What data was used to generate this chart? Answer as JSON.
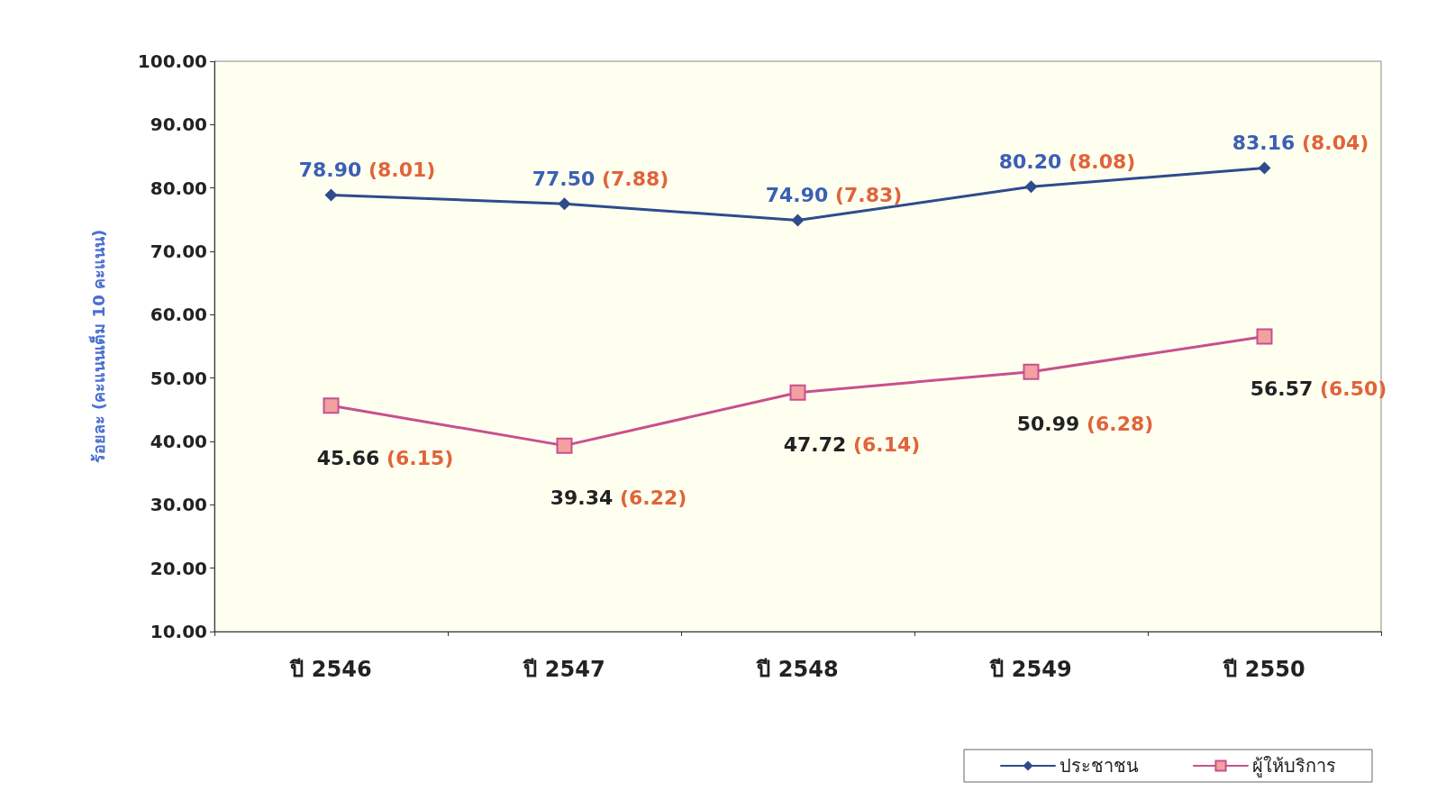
{
  "chart_data": {
    "type": "line",
    "ylabel": "ร้อยละ (คะแนนเต็ม 10 คะแนน)",
    "categories": [
      "ปี 2546",
      "ปี 2547",
      "ปี 2548",
      "ปี 2549",
      "ปี 2550"
    ],
    "series": [
      {
        "name": "ประชาชน",
        "color": "#2f4b8c",
        "marker": "diamond",
        "values": [
          78.9,
          77.5,
          74.9,
          80.2,
          83.16
        ],
        "value_labels": [
          "78.90 (8.01)",
          "77.50 (7.88)",
          "74.90 (7.83)",
          "80.20 (8.08)",
          "83.16 (8.04)"
        ]
      },
      {
        "name": "ผู้ให้บริการ",
        "color": "#c8508e",
        "marker": "square",
        "values": [
          45.66,
          39.34,
          47.72,
          50.99,
          56.57
        ],
        "value_labels": [
          "45.66 (6.15)",
          "39.34 (6.22)",
          "47.72 (6.14)",
          "50.99 (6.28)",
          "56.57 (6.50)"
        ]
      }
    ],
    "ylim": [
      10,
      100
    ],
    "yticks": [
      {
        "value": 10,
        "label": "10.00"
      },
      {
        "value": 20,
        "label": "20.00"
      },
      {
        "value": 30,
        "label": "30.00"
      },
      {
        "value": 40,
        "label": "40.00"
      },
      {
        "value": 50,
        "label": "50.00"
      },
      {
        "value": 60,
        "label": "60.00"
      },
      {
        "value": 70,
        "label": "70.00"
      },
      {
        "value": 80,
        "label": "80.00"
      },
      {
        "value": 90,
        "label": "90.00"
      },
      {
        "value": 100,
        "label": "100.00"
      }
    ],
    "grid": false,
    "legend": "bottom right",
    "line_style": "solid"
  }
}
